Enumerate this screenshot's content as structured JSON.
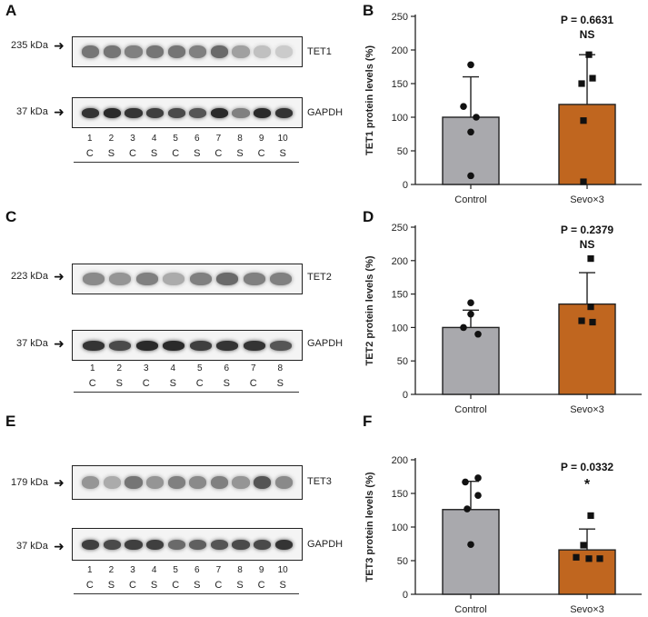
{
  "panels": {
    "A": {
      "label": "A"
    },
    "C": {
      "label": "C"
    },
    "E": {
      "label": "E"
    },
    "B": {
      "label": "B"
    },
    "D": {
      "label": "D"
    },
    "F": {
      "label": "F"
    }
  },
  "blots": [
    {
      "id": "A",
      "target_kda": "235 kDa",
      "target_name": "TET1",
      "control_kda": "37 kDa",
      "control_name": "GAPDH",
      "lanes": [
        "1",
        "2",
        "3",
        "4",
        "5",
        "6",
        "7",
        "8",
        "9",
        "10"
      ],
      "groups": [
        "C",
        "S",
        "C",
        "S",
        "C",
        "S",
        "C",
        "S",
        "C",
        "S"
      ],
      "target_intensity": [
        0.55,
        0.55,
        0.5,
        0.55,
        0.55,
        0.5,
        0.6,
        0.35,
        0.2,
        0.15
      ],
      "control_intensity": [
        0.85,
        0.9,
        0.85,
        0.8,
        0.75,
        0.7,
        0.9,
        0.5,
        0.9,
        0.85
      ]
    },
    {
      "id": "C",
      "target_kda": "223 kDa",
      "target_name": "TET2",
      "control_kda": "37 kDa",
      "control_name": "GAPDH",
      "lanes": [
        "1",
        "2",
        "3",
        "4",
        "5",
        "6",
        "7",
        "8"
      ],
      "groups": [
        "C",
        "S",
        "C",
        "S",
        "C",
        "S",
        "C",
        "S"
      ],
      "target_intensity": [
        0.45,
        0.4,
        0.5,
        0.3,
        0.5,
        0.6,
        0.5,
        0.5
      ],
      "control_intensity": [
        0.85,
        0.75,
        0.9,
        0.9,
        0.8,
        0.85,
        0.85,
        0.7
      ]
    },
    {
      "id": "E",
      "target_kda": "179 kDa",
      "target_name": "TET3",
      "control_kda": "37 kDa",
      "control_name": "GAPDH",
      "lanes": [
        "1",
        "2",
        "3",
        "4",
        "5",
        "6",
        "7",
        "8",
        "9",
        "10"
      ],
      "groups": [
        "C",
        "S",
        "C",
        "S",
        "C",
        "S",
        "C",
        "S",
        "C",
        "S"
      ],
      "target_intensity": [
        0.4,
        0.3,
        0.55,
        0.4,
        0.5,
        0.45,
        0.5,
        0.4,
        0.7,
        0.45
      ],
      "control_intensity": [
        0.8,
        0.75,
        0.8,
        0.8,
        0.6,
        0.65,
        0.7,
        0.75,
        0.75,
        0.85
      ]
    }
  ],
  "chart_data": [
    {
      "type": "bar",
      "panel": "B",
      "categories": [
        "Control",
        "Sevo×3"
      ],
      "values": [
        100,
        119
      ],
      "error_upper": [
        160,
        193
      ],
      "points": [
        [
          178,
          116,
          100,
          78,
          13
        ],
        [
          193,
          158,
          150,
          95,
          4
        ]
      ],
      "ylabel": "TET1 protein levels (%)",
      "ylim": [
        0,
        250
      ],
      "yticks": [
        "0",
        "50",
        "100",
        "150",
        "200",
        "250"
      ],
      "pvalue": "P = 0.6631",
      "sig": "NS",
      "colors": [
        "#a9a9ad",
        "#c0661f"
      ]
    },
    {
      "type": "bar",
      "panel": "D",
      "categories": [
        "Control",
        "Sevo×3"
      ],
      "values": [
        100,
        135
      ],
      "error_upper": [
        126,
        182
      ],
      "points": [
        [
          137,
          120,
          100,
          90
        ],
        [
          203,
          131,
          110,
          108
        ]
      ],
      "ylabel": "TET2 protein levels (%)",
      "ylim": [
        0,
        250
      ],
      "yticks": [
        "0",
        "50",
        "100",
        "150",
        "200",
        "250"
      ],
      "pvalue": "P = 0.2379",
      "sig": "NS",
      "colors": [
        "#a9a9ad",
        "#c0661f"
      ]
    },
    {
      "type": "bar",
      "panel": "F",
      "categories": [
        "Control",
        "Sevo×3"
      ],
      "values": [
        126,
        66
      ],
      "error_upper": [
        168,
        97
      ],
      "points": [
        [
          173,
          167,
          147,
          127,
          74
        ],
        [
          117,
          73,
          55,
          53,
          53
        ]
      ],
      "ylabel": "TET3 protein levels (%)",
      "ylim": [
        0,
        200
      ],
      "yticks": [
        "0",
        "50",
        "100",
        "150",
        "200"
      ],
      "pvalue": "P = 0.0332",
      "sig": "*",
      "colors": [
        "#a9a9ad",
        "#c0661f"
      ]
    }
  ]
}
